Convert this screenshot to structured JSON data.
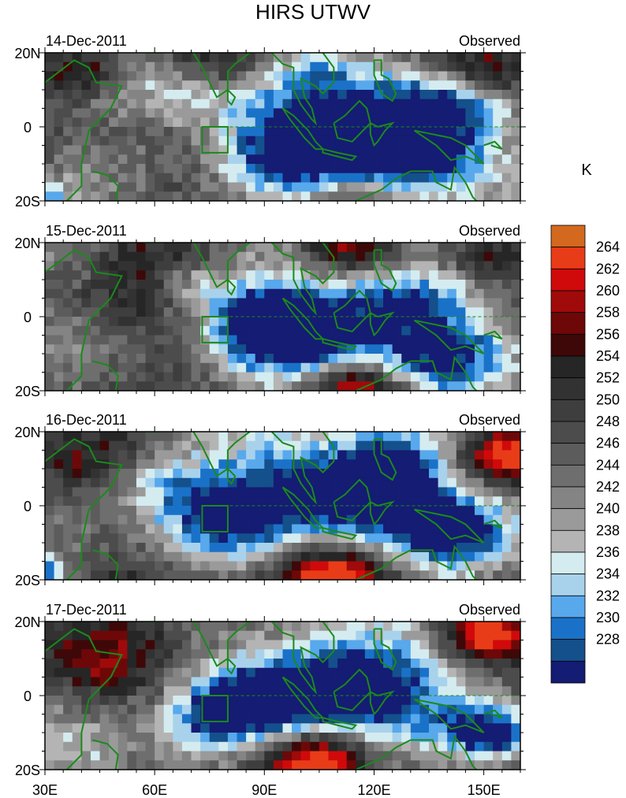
{
  "chart_data": {
    "type": "heatmap",
    "title": "HIRS UTWV",
    "colorbar_unit": "K",
    "colorbar_levels": [
      228,
      230,
      232,
      234,
      236,
      238,
      240,
      242,
      244,
      246,
      248,
      250,
      252,
      254,
      256,
      258,
      260,
      262,
      264
    ],
    "colorbar_colors": [
      "#141c73",
      "#14508c",
      "#1a72c8",
      "#58a8ec",
      "#a8d2ec",
      "#d4ecf0",
      "#b4b4b4",
      "#9a9a9a",
      "#848484",
      "#6e6e6e",
      "#5c5c5c",
      "#4c4c4c",
      "#3e3e3e",
      "#323232",
      "#262626",
      "#3e0808",
      "#6e0808",
      "#a00a0a",
      "#d00a0a",
      "#e83c18",
      "#d2691e"
    ],
    "x_ticks": [
      30,
      60,
      90,
      120,
      150
    ],
    "x_tick_labels": [
      "30E",
      "60E",
      "90E",
      "120E",
      "150E"
    ],
    "xlim": [
      30,
      160
    ],
    "ylim": [
      -20,
      20
    ],
    "y_ticks": [
      -20,
      0,
      20
    ],
    "y_tick_labels": [
      "20S",
      "0",
      "20N"
    ],
    "box_region": {
      "lon": [
        73,
        80
      ],
      "lat": [
        -7,
        0
      ]
    },
    "panels": [
      {
        "date": "14-Dec-2011",
        "source": "Observed"
      },
      {
        "date": "15-Dec-2011",
        "source": "Observed"
      },
      {
        "date": "16-Dec-2011",
        "source": "Observed"
      },
      {
        "date": "17-Dec-2011",
        "source": "Observed"
      }
    ]
  }
}
